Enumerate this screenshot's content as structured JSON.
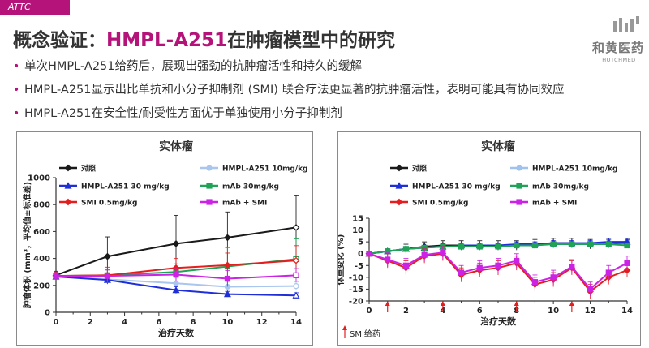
{
  "header": {
    "tag": "ATTC",
    "title_prefix": "概念验证：",
    "title_accent": "HMPL-A251",
    "title_suffix": "在肿瘤模型中的研究"
  },
  "logo": {
    "cn": "和黄医药",
    "en": "HUTCHMED"
  },
  "bullets": [
    "单次HMPL-A251给药后，展现出强劲的抗肿瘤活性和持久的缓解",
    "HMPL-A251显示出比单抗和小分子抑制剂 (SMI) 联合疗法更显著的抗肿瘤活性，表明可能具有协同效应",
    "HMPL-A251在安全性/耐受性方面优于单独使用小分子抑制剂"
  ],
  "chart_data": [
    {
      "type": "line",
      "title": "实体瘤",
      "xlabel": "治疗天数",
      "ylabel": "肿瘤体积 (mm³，平均值±标准差)",
      "xlim": [
        0,
        14
      ],
      "ylim": [
        0,
        1000
      ],
      "xticks": [
        "0",
        "2",
        "4",
        "6",
        "8",
        "10",
        "12",
        "14"
      ],
      "yticks": [
        "0",
        "200",
        "400",
        "600",
        "800",
        "1000"
      ],
      "series": [
        {
          "name": "对照",
          "color": "#1a1a1a",
          "x": [
            0,
            3,
            7,
            10,
            14
          ],
          "y": [
            275,
            415,
            510,
            555,
            630
          ],
          "err": [
            30,
            145,
            210,
            190,
            235
          ]
        },
        {
          "name": "HMPL-A251 10mg/kg",
          "color": "#a9c6ee",
          "x": [
            0,
            3,
            7,
            10,
            14
          ],
          "y": [
            270,
            245,
            215,
            190,
            195
          ],
          "err": [
            25,
            35,
            40,
            35,
            30
          ]
        },
        {
          "name": "HMPL-A251 30 mg/kg",
          "color": "#1f2fd8",
          "x": [
            0,
            3,
            7,
            10,
            14
          ],
          "y": [
            265,
            240,
            165,
            135,
            125
          ],
          "err": [
            25,
            30,
            25,
            20,
            20
          ]
        },
        {
          "name": "mAb 30mg/kg",
          "color": "#1fa356",
          "x": [
            0,
            3,
            7,
            10,
            14
          ],
          "y": [
            270,
            275,
            300,
            340,
            395
          ],
          "err": [
            30,
            40,
            60,
            140,
            150
          ]
        },
        {
          "name": "SMI 0.5mg/kg",
          "color": "#e41e1e",
          "x": [
            0,
            3,
            7,
            10,
            14
          ],
          "y": [
            270,
            275,
            330,
            350,
            385
          ],
          "err": [
            30,
            60,
            70,
            90,
            110
          ]
        },
        {
          "name": "mAb + SMI",
          "color": "#cc22e6",
          "x": [
            0,
            3,
            7,
            10,
            14
          ],
          "y": [
            270,
            270,
            280,
            250,
            275
          ],
          "err": [
            25,
            45,
            45,
            60,
            50
          ]
        }
      ]
    },
    {
      "type": "line",
      "title": "实体瘤",
      "xlabel": "治疗天数",
      "ylabel": "体重变化 (%)",
      "xlim": [
        0,
        14
      ],
      "ylim": [
        -20,
        15
      ],
      "xticks": [
        "0",
        "2",
        "4",
        "6",
        "8",
        "10",
        "12",
        "14"
      ],
      "yticks": [
        "-20",
        "-15",
        "-10",
        "-5",
        "0",
        "5",
        "10",
        "15"
      ],
      "annotation": "SMI给药",
      "dose_days": [
        1,
        4,
        8,
        11
      ],
      "series": [
        {
          "name": "对照",
          "color": "#1a1a1a",
          "x": [
            0,
            1,
            2,
            3,
            4,
            5,
            6,
            7,
            8,
            9,
            10,
            11,
            12,
            13,
            14
          ],
          "y": [
            0,
            1,
            2,
            3,
            3.5,
            3.5,
            3.5,
            3.5,
            3.5,
            4,
            4.5,
            4.5,
            4,
            4.5,
            4.5
          ],
          "err": [
            0,
            1,
            2,
            2,
            2,
            2,
            2,
            2,
            2,
            2,
            2,
            2,
            2,
            2,
            2
          ]
        },
        {
          "name": "HMPL-A251 10mg/kg",
          "color": "#9fc3ee",
          "x": [
            0,
            1,
            2,
            3,
            4,
            5,
            6,
            7,
            8,
            9,
            10,
            11,
            12,
            13,
            14
          ],
          "y": [
            0,
            1,
            2,
            2.5,
            3,
            3,
            3,
            3,
            3.5,
            4,
            4,
            4.5,
            4.5,
            4.5,
            5
          ],
          "err": [
            0,
            1,
            1,
            1,
            1,
            1,
            1,
            1,
            1,
            1,
            1,
            1,
            1,
            1,
            1
          ]
        },
        {
          "name": "HMPL-A251 30 mg/kg",
          "color": "#1f2fd8",
          "x": [
            0,
            1,
            2,
            3,
            4,
            5,
            6,
            7,
            8,
            9,
            10,
            11,
            12,
            13,
            14
          ],
          "y": [
            0,
            1,
            2,
            2.5,
            3,
            3.5,
            3.5,
            3.5,
            4,
            4,
            4.5,
            4.5,
            4.5,
            5,
            5
          ],
          "err": [
            0,
            1,
            1,
            1,
            1,
            1,
            1,
            1,
            1,
            1,
            1,
            1,
            1,
            1,
            1
          ]
        },
        {
          "name": "mAb 30mg/kg",
          "color": "#1fa356",
          "x": [
            0,
            1,
            2,
            3,
            4,
            5,
            6,
            7,
            8,
            9,
            10,
            11,
            12,
            13,
            14
          ],
          "y": [
            0,
            1,
            2,
            2.5,
            3,
            3,
            3,
            3,
            3.5,
            3.5,
            4,
            4,
            4,
            4,
            3.5
          ],
          "err": [
            0,
            1,
            1,
            1,
            1,
            1,
            1,
            1,
            1,
            1,
            1,
            1,
            1,
            1,
            1
          ]
        },
        {
          "name": "SMI 0.5mg/kg",
          "color": "#e41e1e",
          "x": [
            0,
            1,
            2,
            3,
            4,
            5,
            6,
            7,
            8,
            9,
            10,
            11,
            12,
            13,
            14
          ],
          "y": [
            0,
            -3,
            -6,
            -1,
            0,
            -9,
            -7,
            -6,
            -4,
            -13,
            -11,
            -6,
            -16,
            -10,
            -7
          ],
          "err": [
            0,
            3,
            3,
            3,
            3,
            3,
            3,
            3,
            3,
            3,
            3,
            3,
            3,
            3,
            3
          ]
        },
        {
          "name": "mAb + SMI",
          "color": "#cc22e6",
          "x": [
            0,
            1,
            2,
            3,
            4,
            5,
            6,
            7,
            8,
            9,
            10,
            11,
            12,
            13,
            14
          ],
          "y": [
            0,
            -2.5,
            -5,
            -0.5,
            0.5,
            -8,
            -6,
            -5,
            -3,
            -12,
            -10,
            -5.5,
            -15,
            -8,
            -4
          ],
          "err": [
            0,
            3,
            3,
            3,
            3,
            3,
            3,
            3,
            3,
            3,
            3,
            3,
            3,
            3,
            3
          ]
        }
      ]
    }
  ]
}
